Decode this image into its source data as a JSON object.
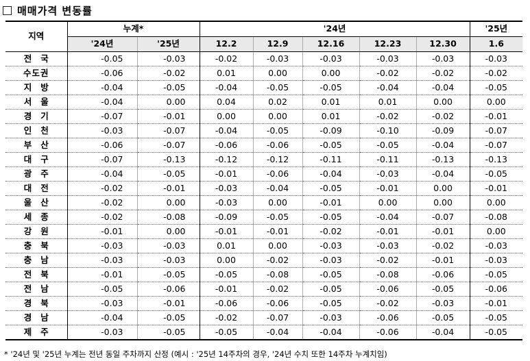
{
  "title": "매매가격 변동률",
  "table": {
    "header1": {
      "region": "지역",
      "cumulative": "누계*",
      "year24": "'24년",
      "year25": "'25년"
    },
    "header2": [
      "'24년",
      "'25년",
      "12.2",
      "12.9",
      "12.16",
      "12.23",
      "12.30",
      "1.6"
    ],
    "rows": [
      {
        "region": "전국",
        "values": [
          "-0.05",
          "-0.03",
          "-0.02",
          "-0.03",
          "-0.03",
          "-0.03",
          "-0.03",
          "-0.03"
        ]
      },
      {
        "region": "수도권",
        "values": [
          "-0.06",
          "-0.02",
          "0.01",
          "0.00",
          "0.00",
          "-0.02",
          "-0.02",
          "-0.02"
        ]
      },
      {
        "region": "지방",
        "values": [
          "-0.04",
          "-0.05",
          "-0.04",
          "-0.05",
          "-0.05",
          "-0.04",
          "-0.04",
          "-0.05"
        ]
      },
      {
        "region": "서울",
        "values": [
          "-0.04",
          "0.00",
          "0.04",
          "0.02",
          "0.01",
          "0.01",
          "0.00",
          "0.00"
        ]
      },
      {
        "region": "경기",
        "values": [
          "-0.07",
          "-0.01",
          "0.00",
          "0.00",
          "0.01",
          "-0.02",
          "-0.02",
          "-0.01"
        ]
      },
      {
        "region": "인천",
        "values": [
          "-0.03",
          "-0.07",
          "-0.04",
          "-0.05",
          "-0.09",
          "-0.10",
          "-0.09",
          "-0.07"
        ]
      },
      {
        "region": "부산",
        "values": [
          "-0.06",
          "-0.07",
          "-0.06",
          "-0.06",
          "-0.05",
          "-0.05",
          "-0.04",
          "-0.07"
        ]
      },
      {
        "region": "대구",
        "values": [
          "-0.07",
          "-0.13",
          "-0.12",
          "-0.12",
          "-0.11",
          "-0.11",
          "-0.13",
          "-0.13"
        ]
      },
      {
        "region": "광주",
        "values": [
          "-0.04",
          "-0.05",
          "-0.01",
          "-0.06",
          "-0.04",
          "-0.03",
          "-0.04",
          "-0.05"
        ]
      },
      {
        "region": "대전",
        "values": [
          "-0.02",
          "-0.01",
          "-0.03",
          "-0.04",
          "-0.05",
          "-0.01",
          "0.00",
          "-0.01"
        ]
      },
      {
        "region": "울산",
        "values": [
          "-0.02",
          "0.00",
          "-0.03",
          "0.00",
          "-0.01",
          "0.00",
          "0.00",
          "0.00"
        ]
      },
      {
        "region": "세종",
        "values": [
          "-0.02",
          "-0.08",
          "-0.09",
          "-0.05",
          "-0.05",
          "-0.04",
          "-0.07",
          "-0.08"
        ]
      },
      {
        "region": "강원",
        "values": [
          "-0.01",
          "0.00",
          "-0.01",
          "-0.01",
          "-0.02",
          "-0.01",
          "-0.01",
          "0.00"
        ]
      },
      {
        "region": "충북",
        "values": [
          "-0.03",
          "-0.03",
          "0.01",
          "0.00",
          "-0.03",
          "-0.03",
          "-0.02",
          "-0.03"
        ]
      },
      {
        "region": "충남",
        "values": [
          "-0.03",
          "-0.03",
          "0.00",
          "-0.02",
          "-0.03",
          "-0.02",
          "-0.01",
          "-0.03"
        ]
      },
      {
        "region": "전북",
        "values": [
          "-0.01",
          "-0.05",
          "-0.05",
          "-0.08",
          "-0.05",
          "-0.08",
          "-0.06",
          "-0.05"
        ]
      },
      {
        "region": "전남",
        "values": [
          "-0.05",
          "-0.06",
          "-0.01",
          "-0.02",
          "-0.05",
          "-0.06",
          "-0.05",
          "-0.06"
        ]
      },
      {
        "region": "경북",
        "values": [
          "-0.03",
          "-0.01",
          "-0.06",
          "-0.06",
          "-0.05",
          "-0.02",
          "-0.03",
          "-0.01"
        ]
      },
      {
        "region": "경남",
        "values": [
          "-0.04",
          "-0.05",
          "-0.02",
          "-0.07",
          "-0.03",
          "-0.06",
          "-0.05",
          "-0.05"
        ]
      },
      {
        "region": "제주",
        "values": [
          "-0.03",
          "-0.05",
          "-0.05",
          "-0.04",
          "-0.04",
          "-0.06",
          "-0.04",
          "-0.05"
        ]
      }
    ]
  },
  "footnote": "* '24년 및 '25년 누계는 전년 동일 주차까지 산정 (예시 : '25년 14주차의 경우, '24년 수치 또한 14주차 누계치임)",
  "colors": {
    "header_bg": "#e9e9e9",
    "border": "#000000"
  }
}
